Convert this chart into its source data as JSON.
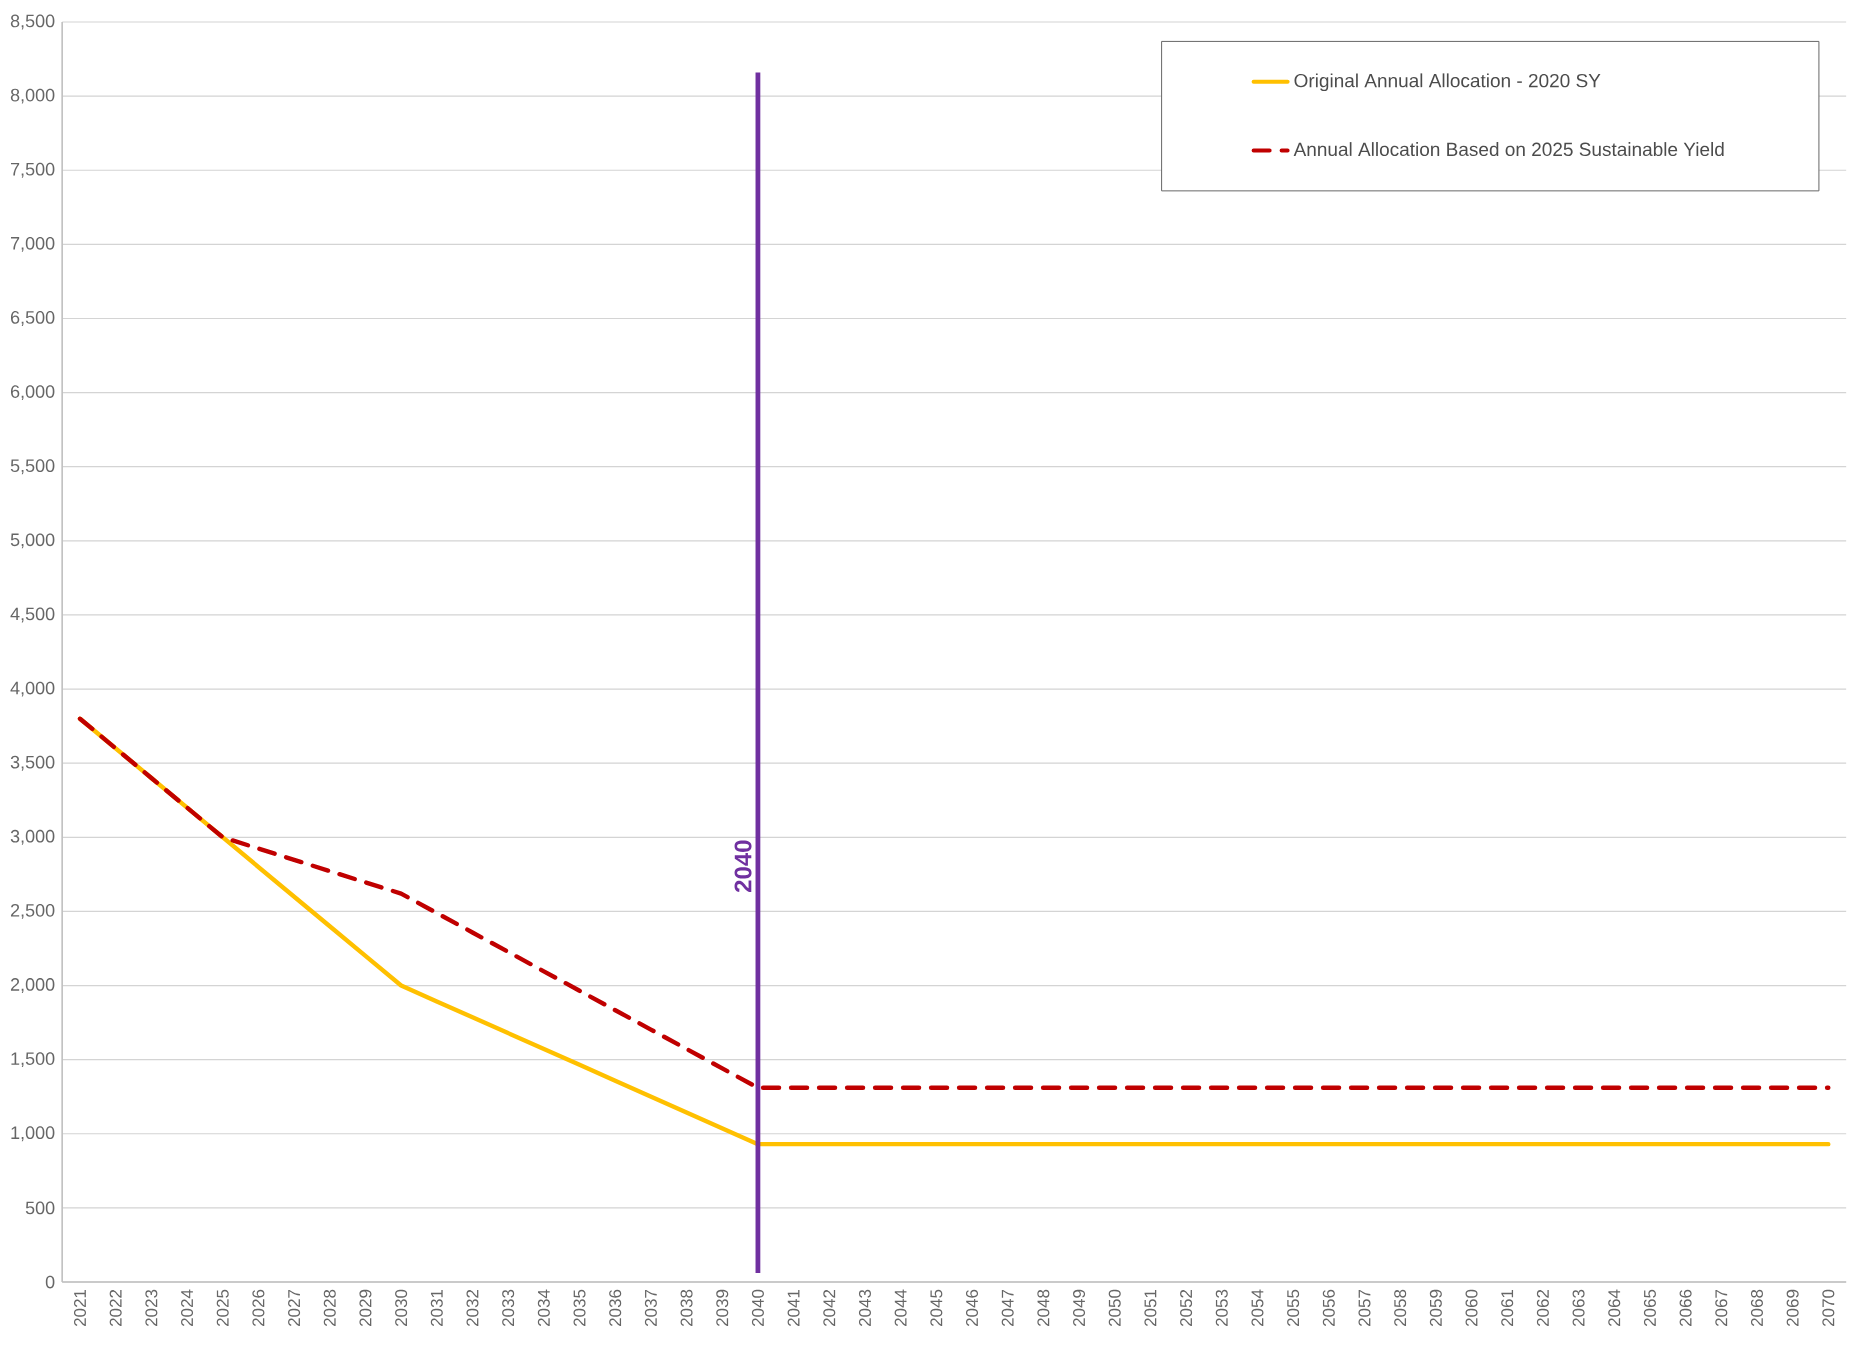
{
  "chart_data": {
    "type": "line",
    "categories": [
      "2021",
      "2022",
      "2023",
      "2024",
      "2025",
      "2026",
      "2027",
      "2028",
      "2029",
      "2030",
      "2031",
      "2032",
      "2033",
      "2034",
      "2035",
      "2036",
      "2037",
      "2038",
      "2039",
      "2040",
      "2041",
      "2042",
      "2043",
      "2044",
      "2045",
      "2046",
      "2047",
      "2048",
      "2049",
      "2050",
      "2051",
      "2052",
      "2053",
      "2054",
      "2055",
      "2056",
      "2057",
      "2058",
      "2059",
      "2060",
      "2061",
      "2062",
      "2063",
      "2064",
      "2065",
      "2066",
      "2067",
      "2068",
      "2069",
      "2070"
    ],
    "series": [
      {
        "name": "Original Annual Allocation - 2020 SY",
        "color": "#ffc000",
        "line_style": "solid",
        "values": [
          3800,
          3600,
          3400,
          3200,
          3000,
          2800,
          2600,
          2400,
          2200,
          2000,
          1893,
          1786,
          1679,
          1572,
          1465,
          1358,
          1251,
          1144,
          1037,
          930,
          930,
          930,
          930,
          930,
          930,
          930,
          930,
          930,
          930,
          930,
          930,
          930,
          930,
          930,
          930,
          930,
          930,
          930,
          930,
          930,
          930,
          930,
          930,
          930,
          930,
          930,
          930,
          930,
          930,
          930
        ]
      },
      {
        "name": "Annual Allocation Based on 2025 Sustainable Yield",
        "color": "#c00000",
        "line_style": "dashed",
        "values": [
          3800,
          3600,
          3400,
          3200,
          3000,
          2924,
          2848,
          2772,
          2696,
          2620,
          2489,
          2358,
          2227,
          2096,
          1965,
          1834,
          1703,
          1572,
          1441,
          1310,
          1310,
          1310,
          1310,
          1310,
          1310,
          1310,
          1310,
          1310,
          1310,
          1310,
          1310,
          1310,
          1310,
          1310,
          1310,
          1310,
          1310,
          1310,
          1310,
          1310,
          1310,
          1310,
          1310,
          1310,
          1310,
          1310,
          1310,
          1310,
          1310,
          1310
        ]
      }
    ],
    "ylim": [
      0,
      8500
    ],
    "yticks": [
      0,
      500,
      {
        "value": 1000,
        "label": "1,000"
      },
      {
        "value": 1500,
        "label": "1,500"
      },
      {
        "value": 2000,
        "label": "2,000"
      },
      {
        "value": 2500,
        "label": "2,500"
      },
      {
        "value": 3000,
        "label": "3,000"
      },
      {
        "value": 3500,
        "label": "3,500"
      },
      {
        "value": 4000,
        "label": "4,000"
      },
      {
        "value": 4500,
        "label": "4,500"
      },
      {
        "value": 5000,
        "label": "5,000"
      },
      {
        "value": 5500,
        "label": "5,500"
      },
      {
        "value": 6000,
        "label": "6,000"
      },
      {
        "value": 6500,
        "label": "6,500"
      },
      {
        "value": 7000,
        "label": "7,000"
      },
      {
        "value": 7500,
        "label": "7,500"
      },
      {
        "value": 8000,
        "label": "8,000"
      },
      {
        "value": 8500,
        "label": "8,500"
      }
    ],
    "ref_lines": [
      {
        "axis": "x",
        "value": "2040",
        "label": "2040",
        "color": "#7030a0"
      }
    ],
    "grid": "y",
    "legend": "top right",
    "marker": "none"
  }
}
